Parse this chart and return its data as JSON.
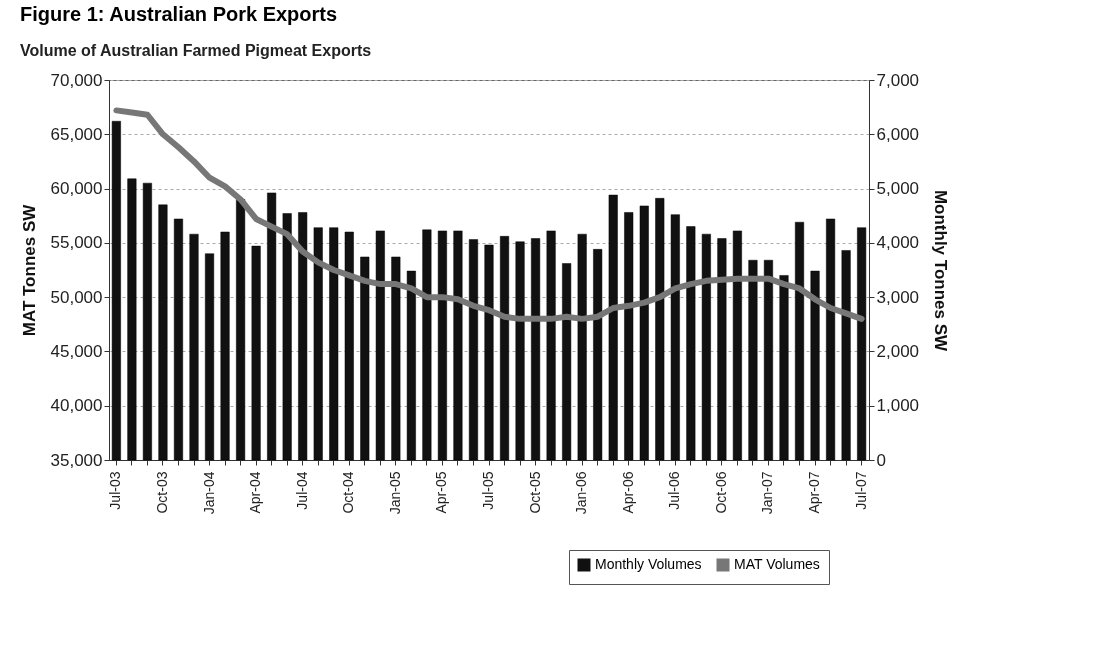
{
  "chart_data": {
    "type": "bar",
    "title": "Figure 1: Australian Pork Exports",
    "subtitle": "Volume of Australian Farmed Pigmeat Exports",
    "ylabel": "MAT Tonnes SW",
    "y2label": "Monthly Tonnes SW",
    "categories": [
      "Jul-03",
      null,
      null,
      "Oct-03",
      null,
      null,
      "Jan-04",
      null,
      null,
      "Apr-04",
      null,
      null,
      "Jul-04",
      null,
      null,
      "Oct-04",
      null,
      null,
      "Jan-05",
      null,
      null,
      "Apr-05",
      null,
      null,
      "Jul-05",
      null,
      null,
      "Oct-05",
      null,
      null,
      "Jan-06",
      null,
      null,
      "Apr-06",
      null,
      null,
      "Jul-06",
      null,
      null,
      "Oct-06",
      null,
      null,
      "Jan-07",
      null,
      null,
      "Apr-07",
      null,
      null,
      "Jul-07"
    ],
    "series": [
      {
        "name": "Monthly Volumes",
        "axis": "y2",
        "color": "#111111",
        "values": [
          6240,
          5180,
          5100,
          4700,
          4440,
          4160,
          3800,
          4200,
          4800,
          3940,
          4920,
          4540,
          4560,
          4280,
          4280,
          4200,
          3740,
          4220,
          3740,
          3480,
          4240,
          4220,
          4220,
          4060,
          3960,
          4120,
          4020,
          4080,
          4220,
          3620,
          4160,
          3880,
          4880,
          4560,
          4680,
          4820,
          4520,
          4300,
          4160,
          4080,
          4220,
          3680,
          3680,
          3400,
          4380,
          3480,
          4440,
          3860,
          4280
        ]
      },
      {
        "name": "MAT Volumes",
        "type": "line",
        "color": "#777777",
        "values": [
          67200,
          67000,
          66800,
          65000,
          63800,
          62500,
          61000,
          60200,
          59000,
          57200,
          56500,
          55800,
          54200,
          53200,
          52500,
          52000,
          51500,
          51200,
          51200,
          50800,
          50000,
          50000,
          49800,
          49200,
          48800,
          48200,
          48000,
          48000,
          48000,
          48200,
          48000,
          48200,
          49000,
          49200,
          49500,
          50000,
          50800,
          51200,
          51500,
          51600,
          51700,
          51700,
          51700,
          51200,
          50800,
          49800,
          49000,
          48500,
          48000
        ]
      }
    ],
    "ylim": [
      35000,
      70000
    ],
    "yticks": [
      {
        "value": 35000,
        "label": "35,000"
      },
      {
        "value": 40000,
        "label": "40,000"
      },
      {
        "value": 45000,
        "label": "45,000"
      },
      {
        "value": 50000,
        "label": "50,000"
      },
      {
        "value": 55000,
        "label": "55,000"
      },
      {
        "value": 60000,
        "label": "60,000"
      },
      {
        "value": 65000,
        "label": "65,000"
      },
      {
        "value": 70000,
        "label": "70,000"
      }
    ],
    "y2lim": [
      0,
      7000
    ],
    "y2ticks": [
      0,
      {
        "value": 1000,
        "label": "1,000"
      },
      {
        "value": 2000,
        "label": "2,000"
      },
      {
        "value": 3000,
        "label": "3,000"
      },
      {
        "value": 4000,
        "label": "4,000"
      },
      {
        "value": 5000,
        "label": "5,000"
      },
      {
        "value": 6000,
        "label": "6,000"
      },
      {
        "value": 7000,
        "label": "7,000"
      }
    ],
    "grid": "y",
    "legend": "bottom right"
  }
}
